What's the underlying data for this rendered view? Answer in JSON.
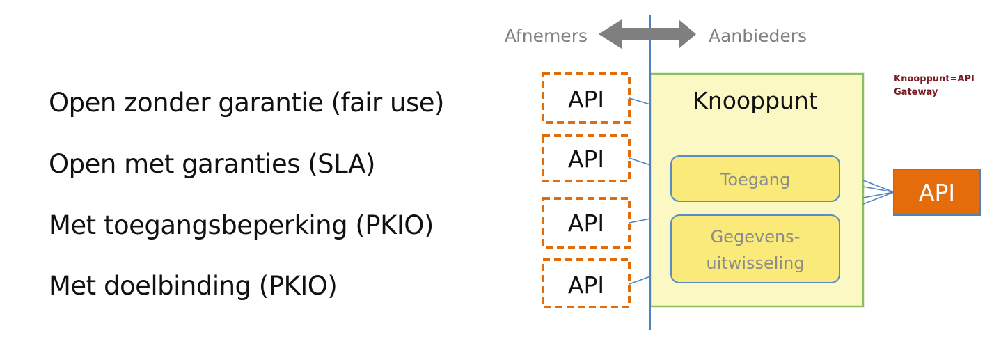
{
  "legend": {
    "left_label": "Afnemers",
    "right_label": "Aanbieders"
  },
  "access_levels": [
    "Open zonder garantie (fair use)",
    "Open met garanties (SLA)",
    "Met toegangsbeperking (PKIO)",
    "Met doelbinding (PKIO)"
  ],
  "consumer_apis": [
    "API",
    "API",
    "API",
    "API"
  ],
  "knooppunt": {
    "title": "Knooppunt",
    "modules": [
      "Toegang",
      "Gegevens-",
      "uitwisseling"
    ]
  },
  "provider_api": "API",
  "annotation": "Knooppunt=API Gateway",
  "colors": {
    "arrow": "#7f7f7f",
    "divider": "#4f81bd",
    "dashed_border": "#e36c0a",
    "knooppunt_fill": "#fcf8c3",
    "knooppunt_border": "#8cbf5e",
    "module_fill": "#f9ea7a",
    "module_border": "#5b8cc4",
    "provider_fill": "#e46c0a",
    "annotation_text": "#7a1a22"
  }
}
